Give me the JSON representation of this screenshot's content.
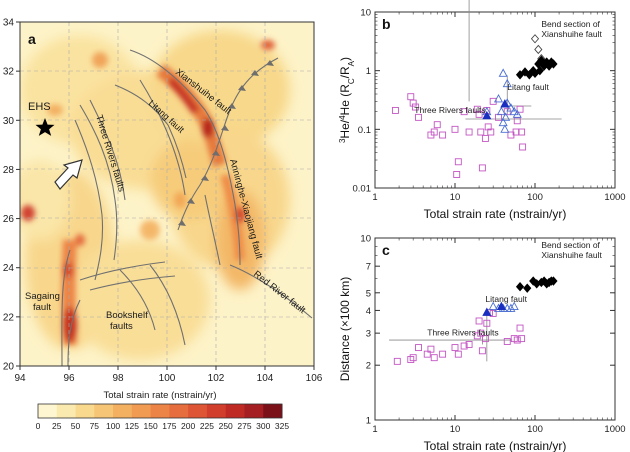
{
  "chart_data": [
    {
      "panel": "a",
      "type": "heatmap",
      "x_ticks": [
        "94",
        "96",
        "98",
        "100",
        "102",
        "104",
        "106"
      ],
      "y_ticks": [
        "20",
        "22",
        "24",
        "26",
        "28",
        "30",
        "32",
        "34"
      ],
      "xlim": [
        94,
        106
      ],
      "ylim": [
        20,
        34
      ],
      "colorbar": {
        "label": "Total strain rate (nstrain/yr)",
        "ticks": [
          "0",
          "25",
          "50",
          "75",
          "100",
          "125",
          "150",
          "175",
          "200",
          "225",
          "250",
          "275",
          "300",
          "325"
        ],
        "colors": [
          "#fdf6d0",
          "#fbeab0",
          "#f9d98e",
          "#f6c575",
          "#f3b061",
          "#f09a52",
          "#ec8447",
          "#e66d3d",
          "#dd5534",
          "#d13e2c",
          "#c02a25",
          "#a51e22",
          "#7c1019"
        ]
      },
      "labels": {
        "ehs": "EHS",
        "xianshuihe": "Xianshuihe fault",
        "litang": "Litang fault",
        "three_rivers": "Three Rivers faults",
        "anninghe": "Anninghe-Xiaojiang fault",
        "sagaing_1": "Sagaing",
        "sagaing_2": "fault",
        "bookshelf_1": "Bookshelf",
        "bookshelf_2": "faults",
        "red_river": "Red River fault"
      },
      "ehs_location": {
        "lon": 95.0,
        "lat": 30.0
      }
    },
    {
      "panel": "b",
      "type": "scatter",
      "xlabel": "Total strain rate (nstrain/yr)",
      "ylabel_parts": [
        "3",
        "He/",
        "4",
        "He (R",
        "C",
        "/R",
        "A",
        ")"
      ],
      "xscale": "log",
      "yscale": "log",
      "xlim": [
        1,
        1000
      ],
      "ylim": [
        0.01,
        10
      ],
      "x_ticks": [
        "1",
        "10",
        "100",
        "1000"
      ],
      "y_ticks": [
        "0.01",
        "0.1",
        "1",
        "10"
      ],
      "annotations": {
        "bend_1": "Bend section of",
        "bend_2": "Xianshuihe fault",
        "litang": "Litang fault",
        "three_rivers": "Three Rivers faults"
      },
      "series": [
        {
          "marker": "square",
          "color": "#c455c4",
          "points": [
            [
              1.8,
              0.21
            ],
            [
              2.8,
              0.36
            ],
            [
              3.0,
              0.28
            ],
            [
              3.2,
              0.24
            ],
            [
              3.5,
              0.16
            ],
            [
              5.0,
              0.08
            ],
            [
              5.5,
              0.09
            ],
            [
              6.0,
              0.12
            ],
            [
              7.0,
              0.08
            ],
            [
              10.0,
              0.1
            ],
            [
              10.5,
              0.017
            ],
            [
              11.0,
              0.028
            ],
            [
              13.0,
              0.2
            ],
            [
              15.0,
              0.09
            ],
            [
              19.0,
              0.22
            ],
            [
              20.0,
              0.18
            ],
            [
              21.0,
              0.09
            ],
            [
              22.0,
              0.022
            ],
            [
              24.0,
              0.07
            ],
            [
              25.0,
              0.21
            ],
            [
              26.0,
              0.11
            ],
            [
              28.0,
              0.09
            ],
            [
              30.0,
              0.3
            ],
            [
              35.0,
              0.16
            ],
            [
              45.0,
              0.2
            ],
            [
              50.0,
              0.08
            ],
            [
              58.0,
              0.09
            ],
            [
              60.0,
              0.14
            ],
            [
              65.0,
              0.22
            ],
            [
              68.0,
              0.09
            ],
            [
              70.0,
              0.05
            ]
          ]
        },
        {
          "marker": "triangle",
          "color": "#4b6fd1",
          "points": [
            [
              25.0,
              0.2
            ],
            [
              35.0,
              0.33
            ],
            [
              38.0,
              0.2
            ],
            [
              40.0,
              0.13
            ],
            [
              42.0,
              0.1
            ],
            [
              43.0,
              0.16
            ],
            [
              45.0,
              0.28
            ],
            [
              50.0,
              0.23
            ],
            [
              55.0,
              0.2
            ],
            [
              60.0,
              0.18
            ],
            [
              40.0,
              0.9
            ],
            [
              45.0,
              0.6
            ]
          ]
        },
        {
          "marker": "triangle-filled",
          "color": "#1a2ec0",
          "points": [
            [
              25.0,
              0.17
            ],
            [
              42.0,
              0.27
            ]
          ]
        },
        {
          "marker": "diamond",
          "color": "#444444",
          "points": [
            [
              100,
              3.5
            ],
            [
              110,
              2.3
            ],
            [
              120,
              1.6
            ]
          ]
        },
        {
          "marker": "diamond-filled",
          "color": "#000000",
          "points": [
            [
              65,
              0.85
            ],
            [
              75,
              0.95
            ],
            [
              85,
              0.85
            ],
            [
              95,
              1.0
            ],
            [
              100,
              0.9
            ],
            [
              110,
              1.3
            ],
            [
              115,
              1.0
            ],
            [
              120,
              1.5
            ],
            [
              130,
              1.2
            ],
            [
              140,
              1.4
            ],
            [
              150,
              1.2
            ],
            [
              160,
              1.4
            ],
            [
              170,
              1.3
            ]
          ]
        }
      ],
      "error_bars": [
        {
          "x": 15,
          "y": 0.15,
          "x_err": [
            1.5,
            200
          ],
          "y_err": [
            0.15,
            0.15
          ]
        },
        {
          "x": 45,
          "y": 0.25,
          "x_err": [
            45,
            45
          ],
          "y_err": [
            0.07,
            0.58
          ]
        }
      ]
    },
    {
      "panel": "c",
      "type": "scatter",
      "xlabel": "Total strain rate (nstrain/yr)",
      "ylabel": "Distance (×100 km)",
      "xscale": "log",
      "yscale": "log",
      "xlim": [
        1,
        1000
      ],
      "ylim": [
        1,
        10
      ],
      "x_ticks": [
        "1",
        "10",
        "100",
        "1000"
      ],
      "y_ticks": [
        "1",
        "2",
        "3",
        "4",
        "5",
        "7",
        "10"
      ],
      "annotations": {
        "bend_1": "Bend section of",
        "bend_2": "Xianshuihe fault",
        "litang": "Litang fault",
        "three_rivers": "Three Rivers faults"
      },
      "series": [
        {
          "marker": "square",
          "color": "#c455c4",
          "points": [
            [
              1.9,
              2.1
            ],
            [
              2.8,
              2.15
            ],
            [
              3.0,
              2.2
            ],
            [
              3.5,
              2.5
            ],
            [
              4.5,
              2.3
            ],
            [
              5.0,
              2.45
            ],
            [
              5.5,
              2.2
            ],
            [
              7.0,
              2.3
            ],
            [
              10.0,
              2.5
            ],
            [
              11.0,
              2.3
            ],
            [
              13.0,
              2.55
            ],
            [
              15.0,
              2.6
            ],
            [
              19.0,
              2.9
            ],
            [
              20.0,
              3.5
            ],
            [
              21.0,
              3.0
            ],
            [
              22.0,
              2.4
            ],
            [
              24.0,
              2.8
            ],
            [
              25.0,
              3.4
            ],
            [
              27.0,
              3.9
            ],
            [
              30.0,
              3.85
            ],
            [
              45.0,
              2.7
            ],
            [
              55.0,
              2.8
            ],
            [
              60.0,
              2.75
            ],
            [
              65.0,
              3.2
            ],
            [
              68.0,
              2.8
            ]
          ]
        },
        {
          "marker": "triangle",
          "color": "#4b6fd1",
          "points": [
            [
              30,
              4.2
            ],
            [
              35,
              4.1
            ],
            [
              40,
              4.1
            ],
            [
              45,
              4.1
            ],
            [
              50,
              4.1
            ],
            [
              55,
              4.2
            ]
          ]
        },
        {
          "marker": "triangle-filled",
          "color": "#1a2ec0",
          "points": [
            [
              25,
              3.9
            ],
            [
              38,
              4.2
            ]
          ]
        },
        {
          "marker": "diamond-filled",
          "color": "#000000",
          "points": [
            [
              65,
              5.4
            ],
            [
              80,
              5.3
            ],
            [
              95,
              5.8
            ],
            [
              105,
              5.6
            ],
            [
              120,
              5.7
            ],
            [
              130,
              5.8
            ],
            [
              140,
              5.6
            ],
            [
              150,
              5.7
            ],
            [
              160,
              5.8
            ],
            [
              170,
              5.8
            ]
          ]
        }
      ],
      "error_bars": [
        {
          "x": 22,
          "y": 2.75,
          "x_err": [
            20.5,
            30
          ],
          "y_err": [
            0.15,
            0.15
          ]
        },
        {
          "x": 25,
          "y": 3.2,
          "x_err": [
            0,
            0
          ],
          "y_err": [
            1.1,
            0.8
          ]
        }
      ]
    }
  ]
}
